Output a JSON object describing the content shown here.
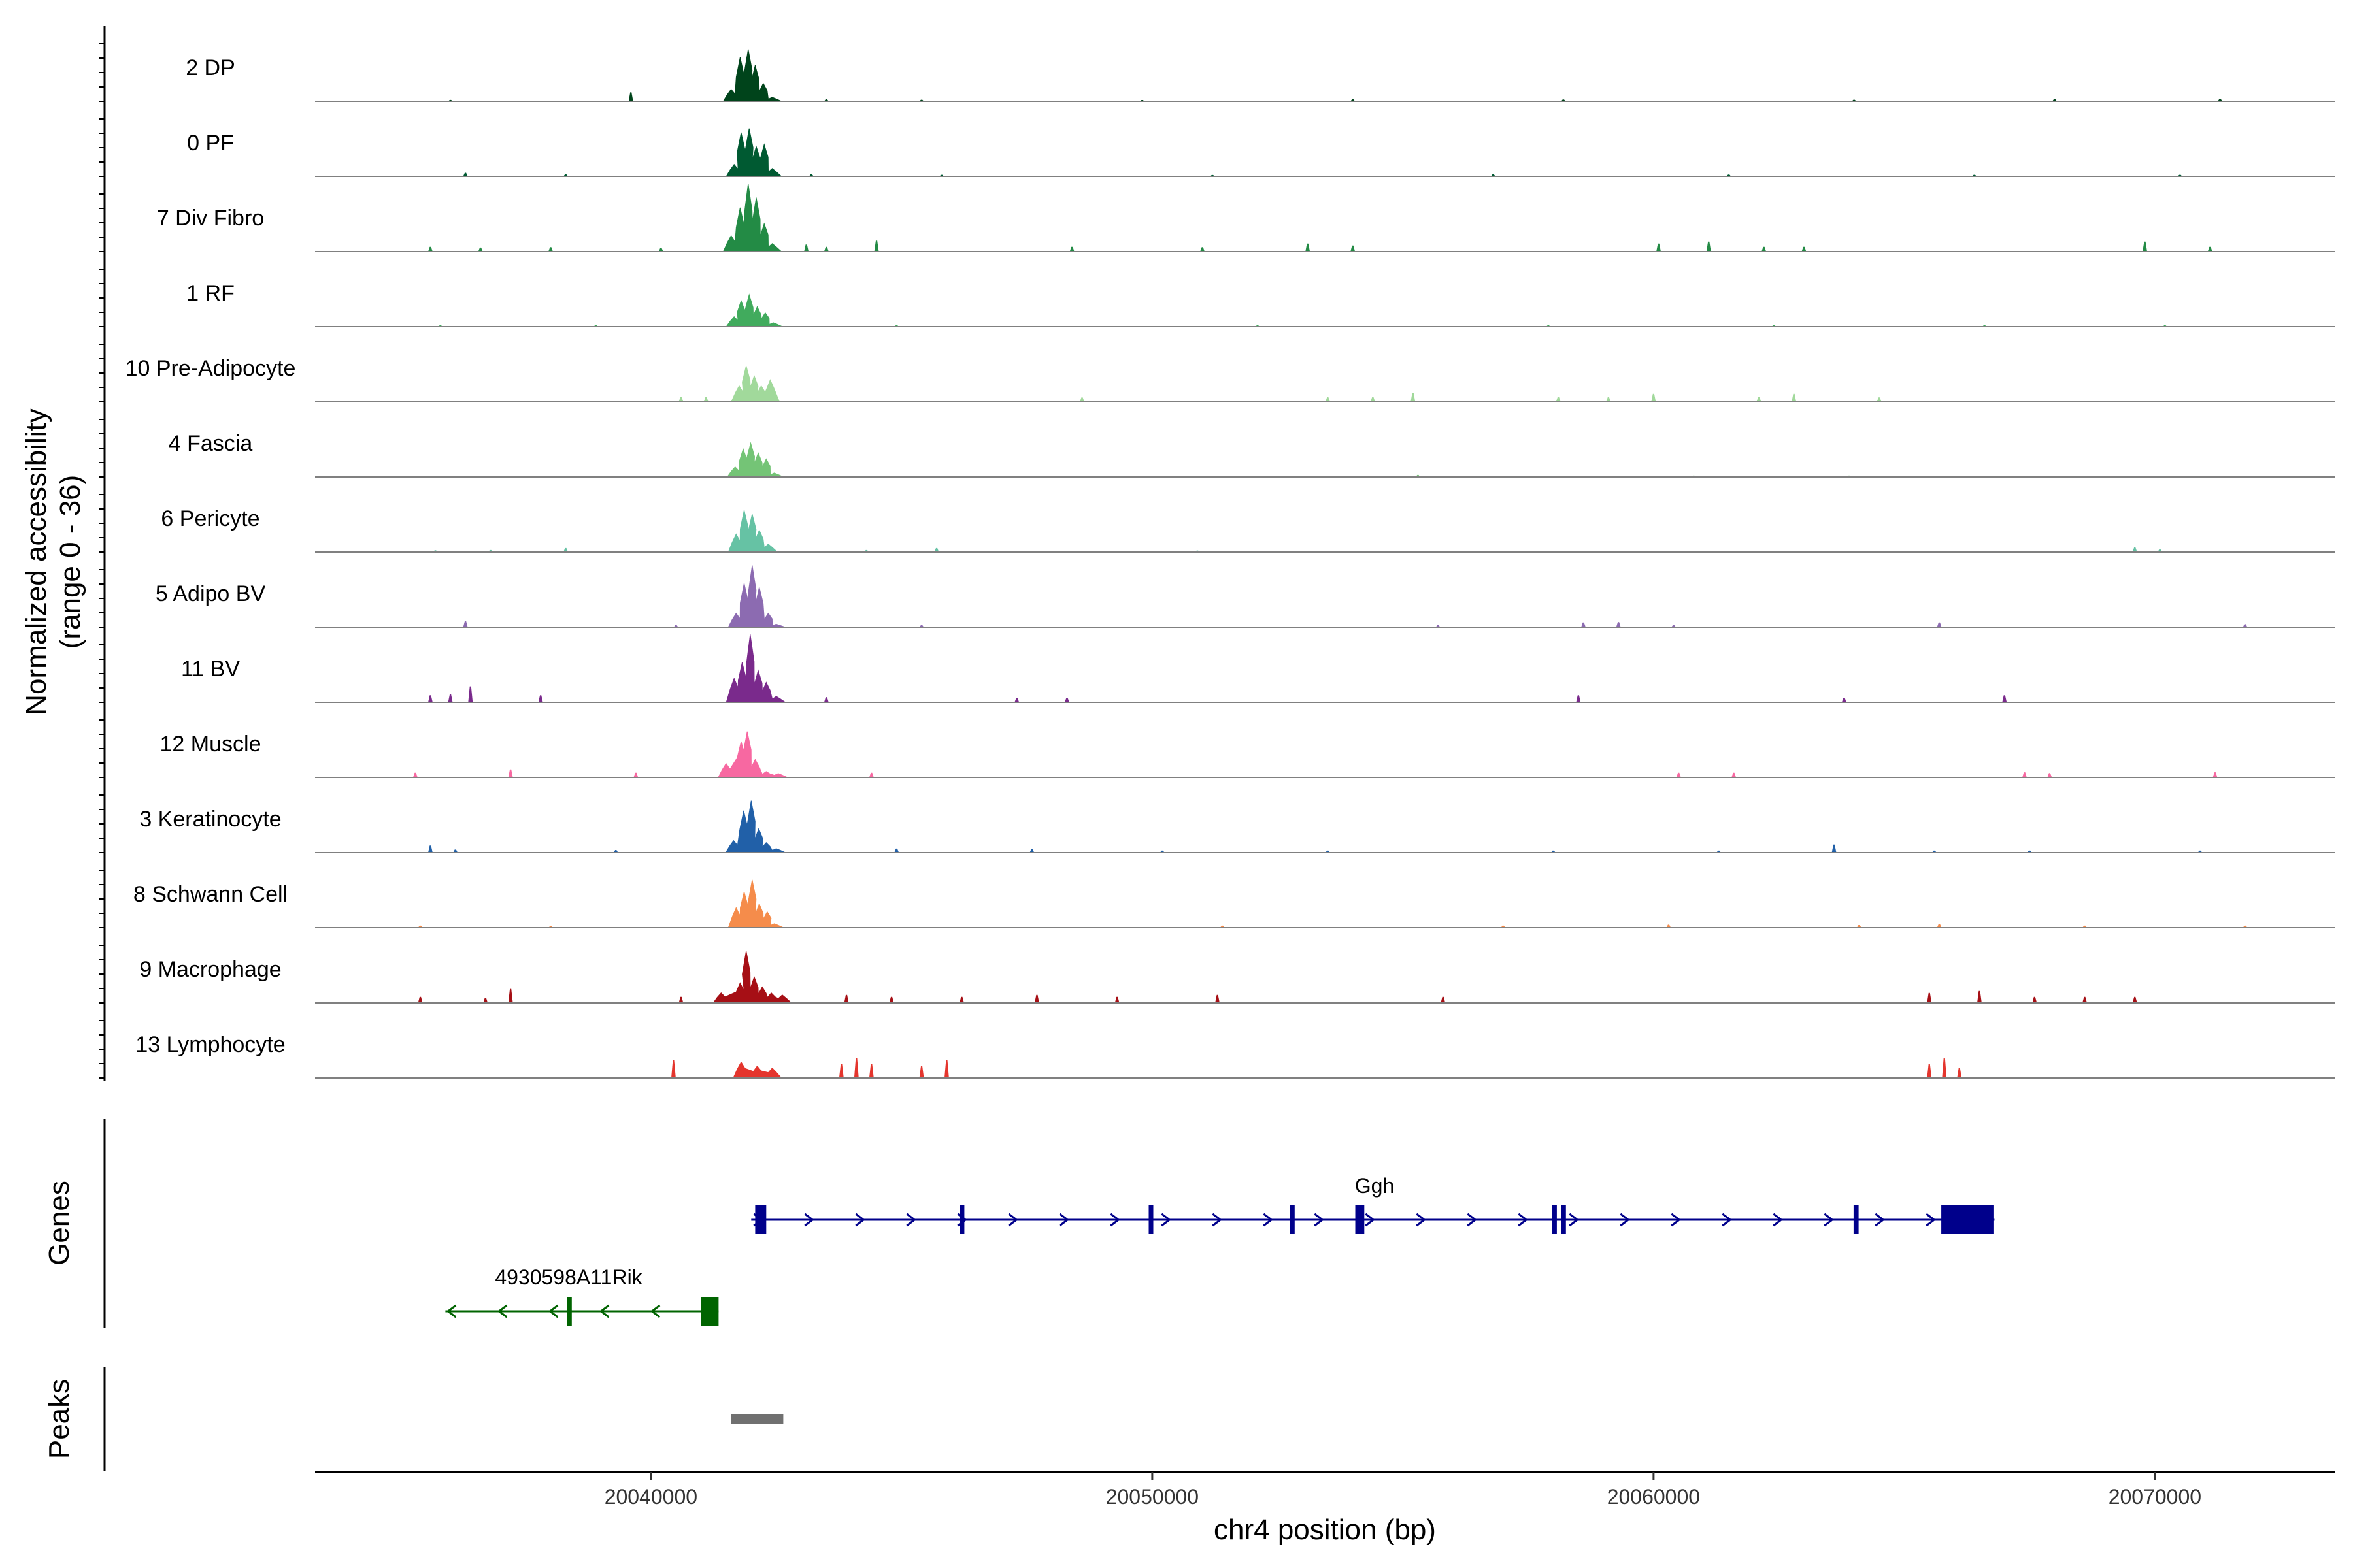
{
  "chart_data": {
    "type": "coverage",
    "ylabel_line1": "Normalized accessibility",
    "ylabel_line2": "(range 0 - 36)",
    "y_range": [
      0,
      36
    ],
    "xlabel": "chr4 position (bp)",
    "xlim": [
      20033300,
      20073600
    ],
    "xticks": [
      20040000,
      20050000,
      20060000,
      20070000
    ],
    "xtick_labels": [
      "20040000",
      "20050000",
      "20060000",
      "20070000"
    ],
    "genes_label": "Genes",
    "peaks_label": "Peaks",
    "tracks": [
      {
        "name": "2 DP",
        "color": "#00441b",
        "main": [
          [
            20041600,
            6
          ],
          [
            20041780,
            22
          ],
          [
            20041940,
            26
          ],
          [
            20042080,
            18
          ],
          [
            20042240,
            9
          ],
          [
            20042420,
            2
          ]
        ],
        "bg": [
          [
            20036000,
            0.7
          ],
          [
            20039600,
            4.5
          ],
          [
            20043500,
            1
          ],
          [
            20045400,
            0.8
          ],
          [
            20049800,
            0.6
          ],
          [
            20054000,
            1
          ],
          [
            20058200,
            0.9
          ],
          [
            20064000,
            0.8
          ],
          [
            20068000,
            1.1
          ],
          [
            20071300,
            1.2
          ]
        ]
      },
      {
        "name": "0 PF",
        "color": "#005a32",
        "main": [
          [
            20041660,
            6
          ],
          [
            20041800,
            22
          ],
          [
            20041960,
            24
          ],
          [
            20042100,
            15
          ],
          [
            20042260,
            16
          ],
          [
            20042420,
            4
          ]
        ],
        "bg": [
          [
            20036300,
            1.8
          ],
          [
            20038300,
            1
          ],
          [
            20043200,
            1
          ],
          [
            20045800,
            0.8
          ],
          [
            20051200,
            0.7
          ],
          [
            20056800,
            1
          ],
          [
            20061500,
            0.9
          ],
          [
            20066400,
            0.8
          ],
          [
            20070500,
            0.8
          ]
        ]
      },
      {
        "name": "7 Div Fibro",
        "color": "#238b45",
        "main": [
          [
            20041600,
            8
          ],
          [
            20041780,
            22
          ],
          [
            20041940,
            34
          ],
          [
            20042100,
            27
          ],
          [
            20042260,
            14
          ],
          [
            20042420,
            4
          ]
        ],
        "bg": [
          [
            20035600,
            2.4
          ],
          [
            20036600,
            2
          ],
          [
            20038000,
            2.2
          ],
          [
            20040200,
            1.8
          ],
          [
            20043100,
            3.5
          ],
          [
            20043500,
            2.4
          ],
          [
            20044500,
            5.5
          ],
          [
            20048400,
            2.4
          ],
          [
            20051000,
            2.2
          ],
          [
            20053100,
            4
          ],
          [
            20054000,
            3
          ],
          [
            20060100,
            4
          ],
          [
            20061100,
            5
          ],
          [
            20062200,
            2.4
          ],
          [
            20063000,
            2.4
          ],
          [
            20069800,
            5
          ],
          [
            20071100,
            2.4
          ]
        ]
      },
      {
        "name": "1 RF",
        "color": "#41ab5d",
        "main": [
          [
            20041660,
            5
          ],
          [
            20041800,
            13
          ],
          [
            20041960,
            16
          ],
          [
            20042120,
            10
          ],
          [
            20042280,
            7
          ],
          [
            20042440,
            2
          ]
        ],
        "bg": [
          [
            20035800,
            0.6
          ],
          [
            20038900,
            0.7
          ],
          [
            20044900,
            0.7
          ],
          [
            20052100,
            0.6
          ],
          [
            20057900,
            0.6
          ],
          [
            20062400,
            0.7
          ],
          [
            20066600,
            0.7
          ],
          [
            20070200,
            0.6
          ]
        ]
      },
      {
        "name": "10 Pre-Adipocyte",
        "color": "#a1d99b",
        "main": [
          [
            20041760,
            8
          ],
          [
            20041900,
            18
          ],
          [
            20042060,
            13
          ],
          [
            20042200,
            8
          ],
          [
            20042380,
            11
          ]
        ],
        "bg": [
          [
            20040600,
            2.4
          ],
          [
            20041100,
            2.3
          ],
          [
            20048600,
            2.2
          ],
          [
            20053500,
            2.3
          ],
          [
            20054400,
            2.4
          ],
          [
            20055200,
            4.5
          ],
          [
            20058100,
            2.4
          ],
          [
            20059100,
            2.3
          ],
          [
            20060000,
            4
          ],
          [
            20062100,
            2.4
          ],
          [
            20062800,
            4
          ],
          [
            20064500,
            2.2
          ]
        ]
      },
      {
        "name": "4 Fascia",
        "color": "#74c476",
        "main": [
          [
            20041680,
            5
          ],
          [
            20041840,
            14
          ],
          [
            20041990,
            17
          ],
          [
            20042140,
            12
          ],
          [
            20042300,
            9
          ],
          [
            20042460,
            2
          ]
        ],
        "bg": [
          [
            20037600,
            0.6
          ],
          [
            20042900,
            0.6
          ],
          [
            20055300,
            1
          ],
          [
            20060800,
            0.7
          ],
          [
            20063900,
            0.7
          ],
          [
            20067100,
            0.6
          ],
          [
            20070000,
            0.6
          ]
        ]
      },
      {
        "name": "6 Pericyte",
        "color": "#66c2a4",
        "main": [
          [
            20041700,
            9
          ],
          [
            20041860,
            21
          ],
          [
            20042020,
            19
          ],
          [
            20042160,
            11
          ],
          [
            20042340,
            4
          ]
        ],
        "bg": [
          [
            20035700,
            0.9
          ],
          [
            20036800,
            1
          ],
          [
            20038300,
            2
          ],
          [
            20044300,
            1
          ],
          [
            20045700,
            2
          ],
          [
            20050900,
            0.8
          ],
          [
            20069600,
            2.4
          ],
          [
            20070100,
            1.3
          ]
        ]
      },
      {
        "name": "5 Adipo BV",
        "color": "#8c6bb1",
        "main": [
          [
            20041700,
            7
          ],
          [
            20041860,
            22
          ],
          [
            20042020,
            31
          ],
          [
            20042160,
            20
          ],
          [
            20042340,
            7
          ],
          [
            20042500,
            1.5
          ]
        ],
        "bg": [
          [
            20036300,
            3
          ],
          [
            20040500,
            1
          ],
          [
            20045400,
            1
          ],
          [
            20055700,
            1
          ],
          [
            20058600,
            2.4
          ],
          [
            20059300,
            2.6
          ],
          [
            20060400,
            1
          ],
          [
            20065700,
            2.4
          ],
          [
            20071800,
            1.5
          ]
        ]
      },
      {
        "name": "11 BV",
        "color": "#7a2a8c",
        "main": [
          [
            20041660,
            12
          ],
          [
            20041820,
            20
          ],
          [
            20041980,
            34
          ],
          [
            20042140,
            16
          ],
          [
            20042300,
            10
          ],
          [
            20042500,
            3
          ]
        ],
        "bg": [
          [
            20035600,
            3.5
          ],
          [
            20036000,
            4
          ],
          [
            20036400,
            8
          ],
          [
            20037800,
            3.5
          ],
          [
            20043500,
            2.6
          ],
          [
            20047300,
            2.2
          ],
          [
            20048300,
            2.3
          ],
          [
            20058500,
            3.5
          ],
          [
            20063800,
            2.3
          ],
          [
            20067000,
            3.5
          ]
        ]
      },
      {
        "name": "12 Muscle",
        "color": "#f768a1",
        "main": [
          [
            20041500,
            7
          ],
          [
            20041800,
            18
          ],
          [
            20041920,
            23
          ],
          [
            20042080,
            9
          ],
          [
            20042300,
            3
          ],
          [
            20042540,
            2
          ]
        ],
        "bg": [
          [
            20035300,
            2.4
          ],
          [
            20037200,
            4
          ],
          [
            20039700,
            2.4
          ],
          [
            20044400,
            2.4
          ],
          [
            20060500,
            2.4
          ],
          [
            20061600,
            2.4
          ],
          [
            20067400,
            2.6
          ],
          [
            20067900,
            2.2
          ],
          [
            20071200,
            2.6
          ]
        ]
      },
      {
        "name": "3 Keratinocyte",
        "color": "#2160a8",
        "main": [
          [
            20041650,
            6
          ],
          [
            20041850,
            21
          ],
          [
            20042000,
            26
          ],
          [
            20042150,
            12
          ],
          [
            20042300,
            5
          ],
          [
            20042500,
            2
          ]
        ],
        "bg": [
          [
            20035600,
            3.5
          ],
          [
            20036100,
            1.5
          ],
          [
            20039300,
            1.3
          ],
          [
            20044900,
            2
          ],
          [
            20047600,
            1.7
          ],
          [
            20050200,
            1
          ],
          [
            20053500,
            1
          ],
          [
            20058000,
            1
          ],
          [
            20061300,
            1
          ],
          [
            20063600,
            4
          ],
          [
            20065600,
            1
          ],
          [
            20067500,
            1
          ],
          [
            20070900,
            1
          ]
        ]
      },
      {
        "name": "8 Schwann Cell",
        "color": "#f58c4b",
        "main": [
          [
            20041700,
            10
          ],
          [
            20041860,
            18
          ],
          [
            20042020,
            24
          ],
          [
            20042160,
            12
          ],
          [
            20042320,
            8
          ],
          [
            20042460,
            2
          ]
        ],
        "bg": [
          [
            20035400,
            1
          ],
          [
            20038000,
            0.8
          ],
          [
            20051400,
            1
          ],
          [
            20057000,
            1
          ],
          [
            20060300,
            1.5
          ],
          [
            20064100,
            1.3
          ],
          [
            20065700,
            1.8
          ],
          [
            20068600,
            1
          ],
          [
            20071800,
            1
          ]
        ]
      },
      {
        "name": "9 Macrophage",
        "color": "#a60f15",
        "main": [
          [
            20041400,
            5
          ],
          [
            20041780,
            10
          ],
          [
            20041900,
            26
          ],
          [
            20042060,
            13
          ],
          [
            20042220,
            8
          ],
          [
            20042400,
            5
          ],
          [
            20042620,
            4
          ]
        ],
        "bg": [
          [
            20035400,
            3
          ],
          [
            20036700,
            2.5
          ],
          [
            20037200,
            7
          ],
          [
            20040600,
            3
          ],
          [
            20043900,
            4
          ],
          [
            20044800,
            3
          ],
          [
            20046200,
            3
          ],
          [
            20047700,
            4
          ],
          [
            20049300,
            3
          ],
          [
            20051300,
            4
          ],
          [
            20055800,
            3
          ],
          [
            20065500,
            5
          ],
          [
            20066500,
            6
          ],
          [
            20067600,
            3
          ],
          [
            20068600,
            3
          ],
          [
            20069600,
            3
          ]
        ]
      },
      {
        "name": "13 Lymphocyte",
        "color": "#e4352d",
        "main": [
          [
            20041800,
            8
          ],
          [
            20042120,
            6
          ],
          [
            20042420,
            5
          ]
        ],
        "bg": [
          [
            20040450,
            9
          ],
          [
            20043800,
            7
          ],
          [
            20044100,
            10
          ],
          [
            20044400,
            7
          ],
          [
            20045400,
            6
          ],
          [
            20045900,
            9
          ],
          [
            20065500,
            7
          ],
          [
            20065800,
            10
          ],
          [
            20066100,
            5
          ]
        ]
      }
    ],
    "genes": [
      {
        "name": "Ggh",
        "strand": "+",
        "color": "#00008b",
        "start": 20042000,
        "end": 20066800,
        "exons": [
          [
            20042080,
            20042300
          ],
          [
            20046160,
            20046240
          ],
          [
            20049930,
            20049970
          ],
          [
            20052750,
            20052820
          ],
          [
            20054050,
            20054230
          ],
          [
            20057980,
            20058060
          ],
          [
            20058160,
            20058240
          ],
          [
            20063990,
            20064090
          ],
          [
            20065740,
            20066780
          ]
        ]
      },
      {
        "name": "4930598A11Rik",
        "strand": "-",
        "color": "#006400",
        "start": 20035900,
        "end": 20041350,
        "exons": [
          [
            20038330,
            20038420
          ],
          [
            20041000,
            20041350
          ]
        ]
      }
    ],
    "peaks": [
      [
        20041600,
        20042640
      ]
    ]
  }
}
